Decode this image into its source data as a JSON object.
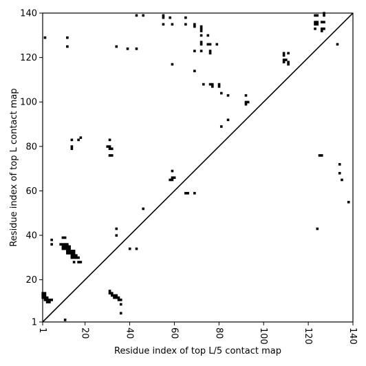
{
  "chart_data": {
    "type": "scatter",
    "title": "",
    "xlabel": "Residue index of top L/5 contact map",
    "ylabel": "Residue index of top L contact map",
    "xlim": [
      1,
      140
    ],
    "ylim": [
      1,
      140
    ],
    "xticks": [
      1,
      20,
      40,
      60,
      80,
      100,
      120,
      140
    ],
    "yticks": [
      1,
      20,
      40,
      60,
      80,
      100,
      120,
      140
    ],
    "grid": false,
    "diagonal_line": true,
    "series": [
      {
        "region": "lower-right (top L/5 map)",
        "points": [
          [
            1,
            12
          ],
          [
            1,
            13
          ],
          [
            1,
            14
          ],
          [
            2,
            11
          ],
          [
            2,
            12
          ],
          [
            2,
            13
          ],
          [
            2,
            14
          ],
          [
            3,
            10
          ],
          [
            3,
            11
          ],
          [
            3,
            12
          ],
          [
            4,
            10
          ],
          [
            4,
            11
          ],
          [
            5,
            11
          ],
          [
            11,
            2
          ],
          [
            31,
            14
          ],
          [
            31,
            15
          ],
          [
            32,
            13
          ],
          [
            32,
            14
          ],
          [
            33,
            12
          ],
          [
            33,
            13
          ],
          [
            34,
            12
          ],
          [
            34,
            13
          ],
          [
            35,
            11
          ],
          [
            35,
            12
          ],
          [
            36,
            9
          ],
          [
            36,
            11
          ],
          [
            36,
            5
          ],
          [
            124,
            43
          ],
          [
            125,
            76
          ],
          [
            126,
            76
          ],
          [
            134,
            72
          ],
          [
            134,
            68
          ],
          [
            135,
            65
          ],
          [
            138,
            55
          ]
        ]
      },
      {
        "region": "upper-left (top L map)",
        "points": [
          [
            2,
            129
          ],
          [
            12,
            129
          ],
          [
            12,
            125
          ],
          [
            5,
            38
          ],
          [
            5,
            36
          ],
          [
            9,
            36
          ],
          [
            10,
            36
          ],
          [
            10,
            35
          ],
          [
            10,
            34
          ],
          [
            10,
            39
          ],
          [
            11,
            39
          ],
          [
            11,
            36
          ],
          [
            11,
            35
          ],
          [
            11,
            34
          ],
          [
            12,
            36
          ],
          [
            12,
            35
          ],
          [
            12,
            34
          ],
          [
            12,
            33
          ],
          [
            12,
            32
          ],
          [
            13,
            35
          ],
          [
            13,
            34
          ],
          [
            13,
            33
          ],
          [
            13,
            32
          ],
          [
            14,
            33
          ],
          [
            14,
            32
          ],
          [
            14,
            31
          ],
          [
            14,
            30
          ],
          [
            15,
            33
          ],
          [
            15,
            32
          ],
          [
            15,
            31
          ],
          [
            15,
            30
          ],
          [
            16,
            31
          ],
          [
            16,
            30
          ],
          [
            17,
            30
          ],
          [
            15,
            28
          ],
          [
            17,
            28
          ],
          [
            18,
            28
          ],
          [
            14,
            83
          ],
          [
            14,
            80
          ],
          [
            14,
            79
          ],
          [
            17,
            83
          ],
          [
            18,
            84
          ],
          [
            30,
            80
          ],
          [
            31,
            83
          ],
          [
            31,
            80
          ],
          [
            31,
            79
          ],
          [
            31,
            76
          ],
          [
            32,
            79
          ],
          [
            32,
            76
          ],
          [
            34,
            125
          ],
          [
            39,
            124
          ],
          [
            43,
            124
          ],
          [
            43,
            139
          ],
          [
            46,
            139
          ],
          [
            34,
            43
          ],
          [
            34,
            40
          ],
          [
            40,
            34
          ],
          [
            43,
            34
          ],
          [
            46,
            52
          ],
          [
            55,
            139
          ],
          [
            55,
            138
          ],
          [
            55,
            135
          ],
          [
            58,
            138
          ],
          [
            59,
            135
          ],
          [
            59,
            117
          ],
          [
            58,
            65
          ],
          [
            59,
            66
          ],
          [
            59,
            65
          ],
          [
            60,
            66
          ],
          [
            59,
            69
          ],
          [
            65,
            138
          ],
          [
            65,
            135
          ],
          [
            69,
            135
          ],
          [
            69,
            134
          ],
          [
            72,
            134
          ],
          [
            72,
            133
          ],
          [
            72,
            132
          ],
          [
            72,
            130
          ],
          [
            72,
            127
          ],
          [
            72,
            126
          ],
          [
            72,
            123
          ],
          [
            69,
            123
          ],
          [
            75,
            130
          ],
          [
            75,
            126
          ],
          [
            76,
            126
          ],
          [
            76,
            123
          ],
          [
            76,
            122
          ],
          [
            79,
            126
          ],
          [
            69,
            114
          ],
          [
            73,
            108
          ],
          [
            76,
            108
          ],
          [
            77,
            108
          ],
          [
            77,
            107
          ],
          [
            80,
            108
          ],
          [
            80,
            107
          ],
          [
            81,
            104
          ],
          [
            84,
            103
          ],
          [
            65,
            59
          ],
          [
            66,
            59
          ],
          [
            69,
            59
          ],
          [
            81,
            89
          ],
          [
            84,
            92
          ],
          [
            92,
            103
          ],
          [
            92,
            100
          ],
          [
            92,
            99
          ],
          [
            93,
            100
          ],
          [
            109,
            122
          ],
          [
            109,
            121
          ],
          [
            109,
            119
          ],
          [
            109,
            118
          ],
          [
            110,
            119
          ],
          [
            111,
            122
          ],
          [
            111,
            118
          ],
          [
            111,
            117
          ],
          [
            123,
            139
          ],
          [
            123,
            136
          ],
          [
            123,
            135
          ],
          [
            123,
            133
          ],
          [
            124,
            139
          ],
          [
            124,
            136
          ],
          [
            124,
            135
          ],
          [
            126,
            136
          ],
          [
            126,
            133
          ],
          [
            126,
            132
          ],
          [
            127,
            140
          ],
          [
            127,
            139
          ],
          [
            127,
            136
          ],
          [
            127,
            133
          ],
          [
            133,
            126
          ]
        ]
      }
    ]
  }
}
